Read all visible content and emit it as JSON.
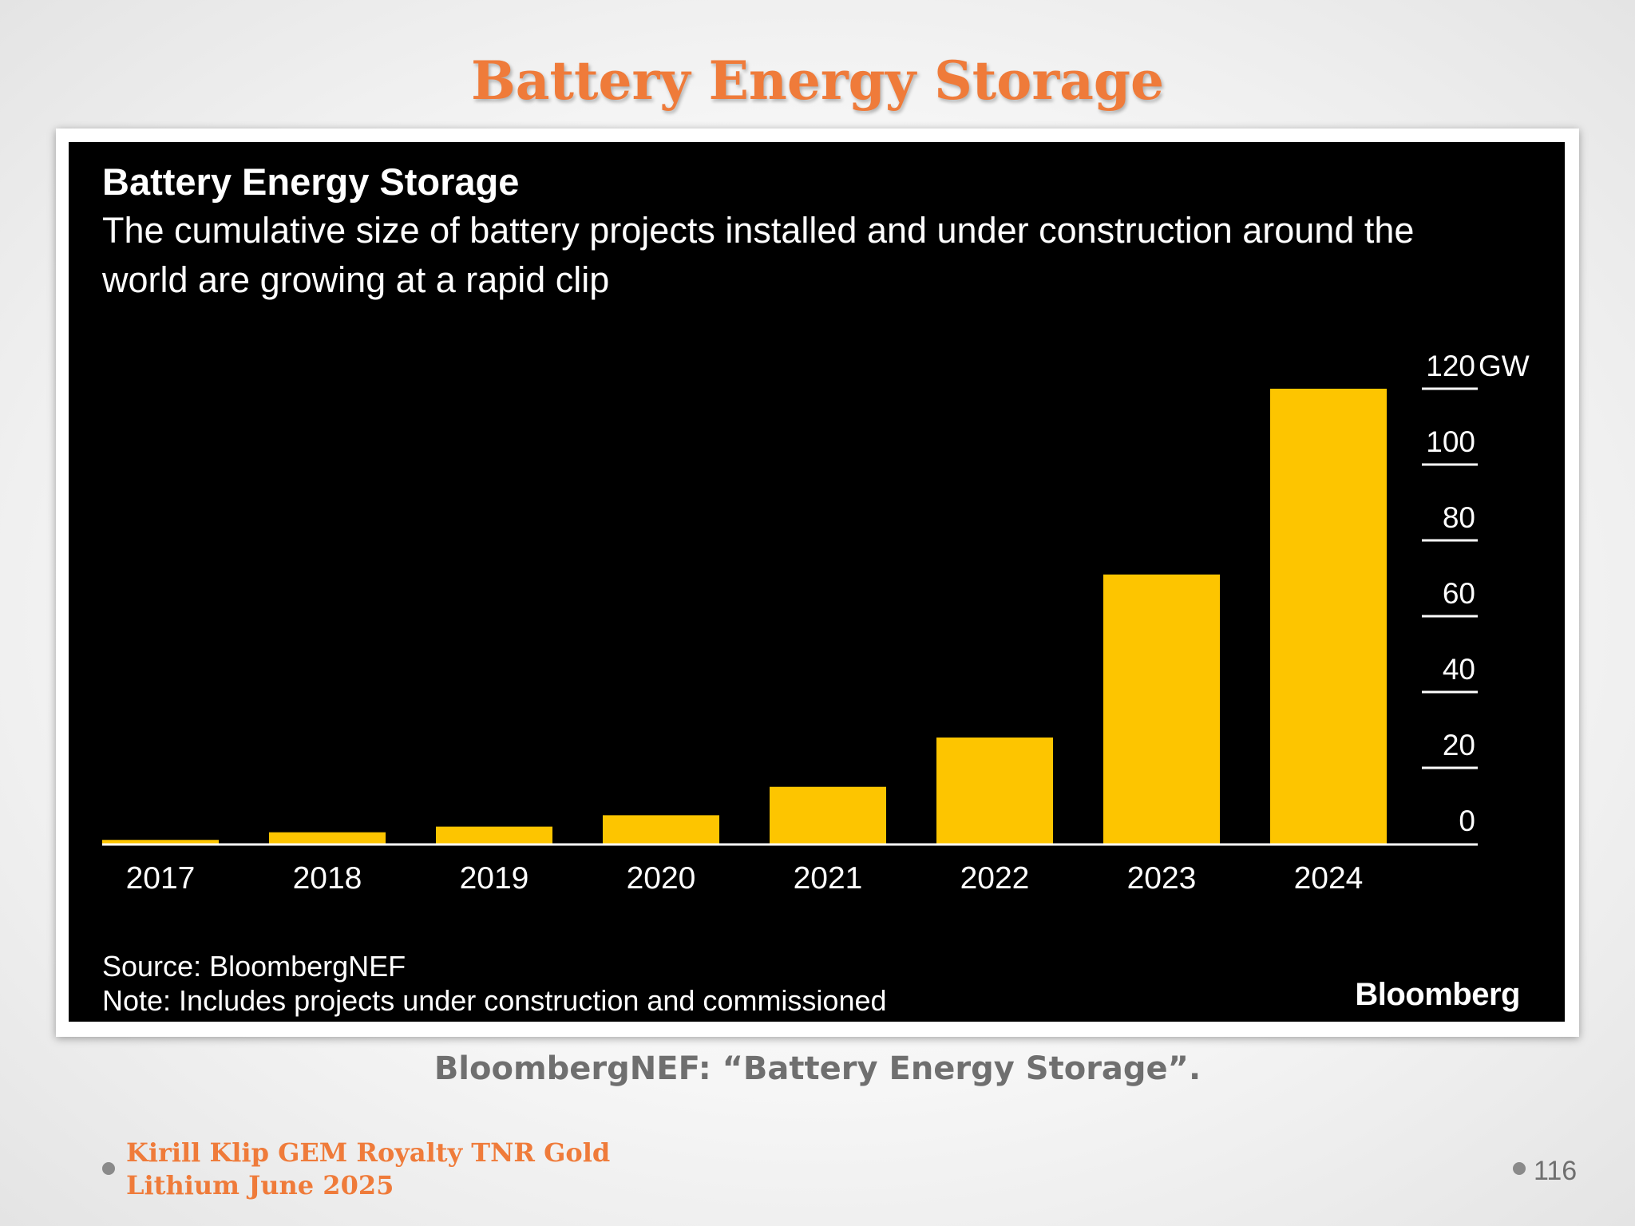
{
  "slide": {
    "title": "Battery Energy Storage",
    "caption": "BloombergNEF: “Battery Energy Storage”.",
    "footer_line1": "Kirill Klip GEM Royalty TNR Gold",
    "footer_line2": "Lithium June 2025",
    "page_number": "116"
  },
  "colors": {
    "title_orange": "#ef7b3a",
    "chart_background": "#000000",
    "bar_yellow": "#fdc500",
    "text_white": "#ffffff",
    "caption_gray": "#6f6f6f"
  },
  "chart_data": {
    "type": "bar",
    "title": "Battery Energy Storage",
    "subtitle": "The cumulative size of battery projects installed and under construction around the world are growing at a rapid clip",
    "categories": [
      "2017",
      "2018",
      "2019",
      "2020",
      "2021",
      "2022",
      "2023",
      "2024"
    ],
    "values": [
      1,
      3,
      4.5,
      7.5,
      15,
      28,
      71,
      120
    ],
    "ylim": [
      0,
      120
    ],
    "y_ticks": [
      "0",
      "20",
      "40",
      "60",
      "80",
      "100",
      "120"
    ],
    "y_unit": "GW",
    "y_axis_side": "right",
    "grid": false,
    "source": "Source: BloombergNEF",
    "note": "Note: Includes projects under construction and commissioned",
    "logo": "Bloomberg"
  }
}
